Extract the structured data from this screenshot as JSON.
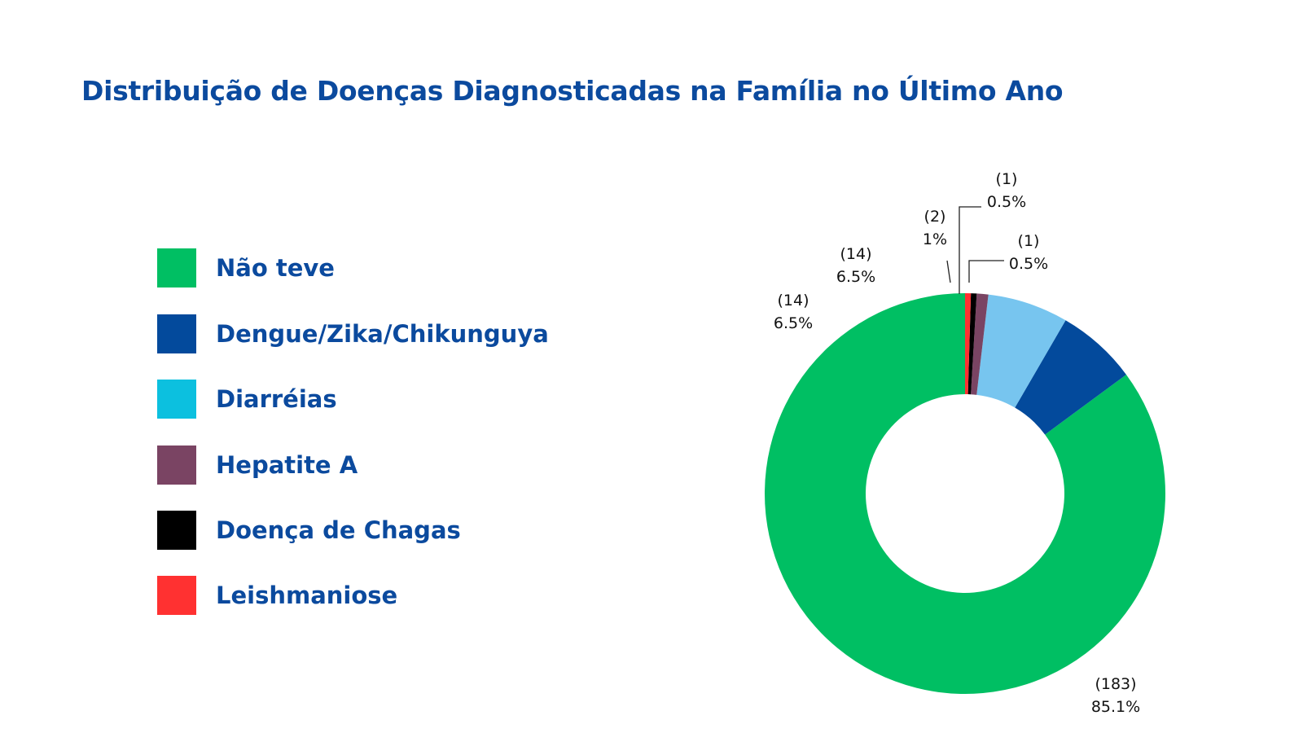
{
  "title": "Distribuição de Doenças Diagnosticadas na Família no Último Ano",
  "legend": [
    {
      "label": "Não teve",
      "color": "#00bf63"
    },
    {
      "label": "Dengue/Zika/Chikunguya",
      "color": "#034a9c"
    },
    {
      "label": "Diarréias",
      "color": "#0cc0df"
    },
    {
      "label": "Hepatite A",
      "color": "#7a4463"
    },
    {
      "label": "Doença de Chagas",
      "color": "#000000"
    },
    {
      "label": "Leishmaniose",
      "color": "#ff3131"
    }
  ],
  "chart_data": {
    "type": "pie",
    "style": "donut",
    "title": "Distribuição de Doenças Diagnosticadas na Família no Último Ano",
    "legend_position": "left",
    "slices": [
      {
        "label": "Não teve",
        "value": 183,
        "percent": "85.1%",
        "color": "#00bf63",
        "count_label": "(183)"
      },
      {
        "label": "Dengue/Zika/Chikunguya",
        "value": 14,
        "percent": "6.5%",
        "color": "#034a9c",
        "count_label": "(14)"
      },
      {
        "label": "Diarréias",
        "value": 14,
        "percent": "6.5%",
        "color": "#77c5ef",
        "count_label": "(14)"
      },
      {
        "label": "Hepatite A",
        "value": 2,
        "percent": "1%",
        "color": "#7a4463",
        "count_label": "(2)"
      },
      {
        "label": "Doença de Chagas",
        "value": 1,
        "percent": "0.5%",
        "color": "#000000",
        "count_label": "(1)"
      },
      {
        "label": "Leishmaniose",
        "value": 1,
        "percent": "0.5%",
        "color": "#ff3131",
        "count_label": "(1)"
      }
    ]
  }
}
